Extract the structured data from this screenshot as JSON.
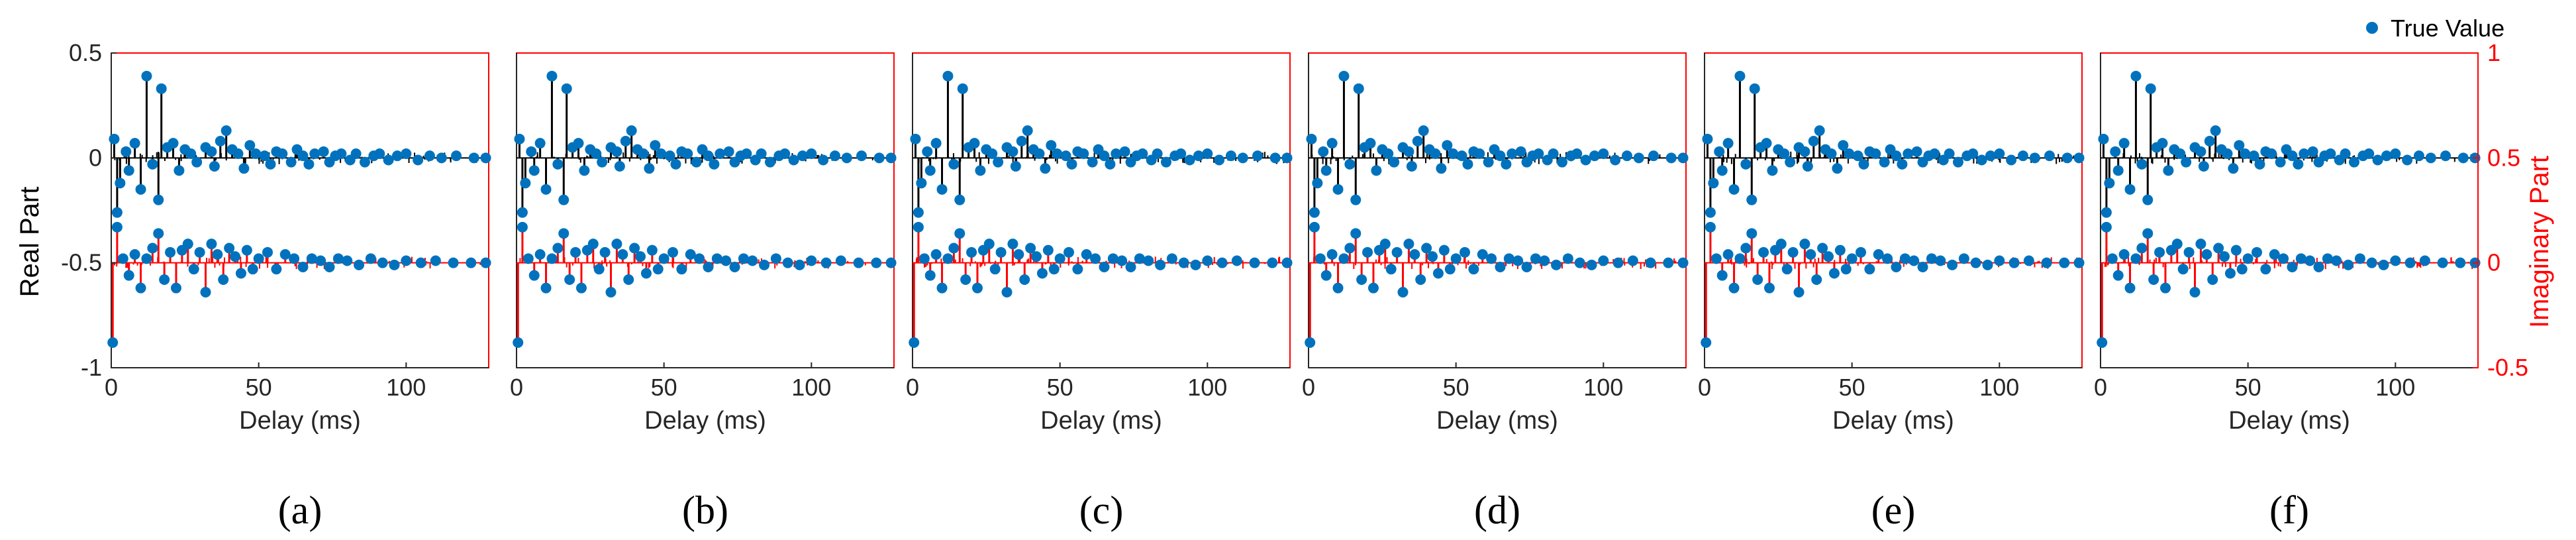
{
  "chart_data": {
    "type": "stem",
    "legend": {
      "label": "True Value",
      "placement": "top-right"
    },
    "xlabel": "Delay (ms)",
    "xlim": [
      0,
      128
    ],
    "xticks": [
      0,
      50,
      100
    ],
    "left_axis": {
      "label": "Real Part",
      "ylim": [
        -1,
        0.5
      ],
      "ticks": [
        "0.5",
        "0",
        "-0.5",
        "-1"
      ],
      "tick_values": [
        0.5,
        0,
        -0.5,
        -1
      ]
    },
    "right_axis": {
      "label": "Imaginary Part",
      "ylim": [
        -0.5,
        1
      ],
      "ticks": [
        "1",
        "0.5",
        "0",
        "-0.5"
      ],
      "tick_values": [
        1,
        0.5,
        0,
        -0.5
      ]
    },
    "colors": {
      "real_stem": "#000000",
      "imag_stem": "#ff0000",
      "true_value": "#0072bd",
      "frame": "#ff0000",
      "axis": "#262626"
    },
    "true_values": {
      "real": [
        {
          "x": 1,
          "y": 0.09
        },
        {
          "x": 2,
          "y": -0.26
        },
        {
          "x": 3,
          "y": -0.12
        },
        {
          "x": 5,
          "y": 0.03
        },
        {
          "x": 6,
          "y": -0.06
        },
        {
          "x": 8,
          "y": 0.07
        },
        {
          "x": 10,
          "y": -0.15
        },
        {
          "x": 12,
          "y": 0.39
        },
        {
          "x": 14,
          "y": -0.03
        },
        {
          "x": 16,
          "y": -0.2
        },
        {
          "x": 17,
          "y": 0.33
        },
        {
          "x": 19,
          "y": 0.05
        },
        {
          "x": 21,
          "y": 0.07
        },
        {
          "x": 23,
          "y": -0.06
        },
        {
          "x": 25,
          "y": 0.04
        },
        {
          "x": 27,
          "y": 0.02
        },
        {
          "x": 29,
          "y": -0.02
        },
        {
          "x": 32,
          "y": 0.05
        },
        {
          "x": 34,
          "y": 0.03
        },
        {
          "x": 35,
          "y": -0.04
        },
        {
          "x": 37,
          "y": 0.08
        },
        {
          "x": 39,
          "y": 0.13
        },
        {
          "x": 41,
          "y": 0.04
        },
        {
          "x": 43,
          "y": 0.02
        },
        {
          "x": 45,
          "y": -0.05
        },
        {
          "x": 47,
          "y": 0.06
        },
        {
          "x": 49,
          "y": 0.02
        },
        {
          "x": 52,
          "y": 0.01
        },
        {
          "x": 54,
          "y": -0.03
        },
        {
          "x": 56,
          "y": 0.03
        },
        {
          "x": 58,
          "y": 0.02
        },
        {
          "x": 61,
          "y": -0.02
        },
        {
          "x": 63,
          "y": 0.04
        },
        {
          "x": 65,
          "y": 0.01
        },
        {
          "x": 67,
          "y": -0.03
        },
        {
          "x": 69,
          "y": 0.02
        },
        {
          "x": 72,
          "y": 0.03
        },
        {
          "x": 74,
          "y": -0.02
        },
        {
          "x": 76,
          "y": 0.01
        },
        {
          "x": 78,
          "y": 0.02
        },
        {
          "x": 81,
          "y": -0.01
        },
        {
          "x": 83,
          "y": 0.02
        },
        {
          "x": 86,
          "y": -0.02
        },
        {
          "x": 89,
          "y": 0.01
        },
        {
          "x": 91,
          "y": 0.02
        },
        {
          "x": 94,
          "y": -0.01
        },
        {
          "x": 97,
          "y": 0.01
        },
        {
          "x": 100,
          "y": 0.02
        },
        {
          "x": 104,
          "y": -0.01
        },
        {
          "x": 108,
          "y": 0.01
        },
        {
          "x": 112,
          "y": 0.0
        },
        {
          "x": 117,
          "y": 0.01
        },
        {
          "x": 123,
          "y": 0.0
        },
        {
          "x": 127,
          "y": 0.0
        }
      ],
      "imag": [
        {
          "x": 0.5,
          "y": -0.38
        },
        {
          "x": 2,
          "y": 0.17
        },
        {
          "x": 4,
          "y": 0.02
        },
        {
          "x": 6,
          "y": -0.06
        },
        {
          "x": 8,
          "y": 0.04
        },
        {
          "x": 10,
          "y": -0.12
        },
        {
          "x": 12,
          "y": 0.02
        },
        {
          "x": 14,
          "y": 0.07
        },
        {
          "x": 16,
          "y": 0.14
        },
        {
          "x": 18,
          "y": -0.08
        },
        {
          "x": 20,
          "y": 0.05
        },
        {
          "x": 22,
          "y": -0.12
        },
        {
          "x": 24,
          "y": 0.06
        },
        {
          "x": 26,
          "y": 0.09
        },
        {
          "x": 28,
          "y": -0.03
        },
        {
          "x": 30,
          "y": 0.05
        },
        {
          "x": 32,
          "y": -0.14
        },
        {
          "x": 34,
          "y": 0.09
        },
        {
          "x": 36,
          "y": 0.04
        },
        {
          "x": 38,
          "y": -0.08
        },
        {
          "x": 40,
          "y": 0.07
        },
        {
          "x": 42,
          "y": 0.03
        },
        {
          "x": 44,
          "y": -0.05
        },
        {
          "x": 46,
          "y": 0.06
        },
        {
          "x": 48,
          "y": -0.03
        },
        {
          "x": 50,
          "y": 0.02
        },
        {
          "x": 53,
          "y": 0.05
        },
        {
          "x": 56,
          "y": -0.03
        },
        {
          "x": 59,
          "y": 0.04
        },
        {
          "x": 62,
          "y": 0.02
        },
        {
          "x": 65,
          "y": -0.02
        },
        {
          "x": 68,
          "y": 0.02
        },
        {
          "x": 71,
          "y": 0.01
        },
        {
          "x": 74,
          "y": -0.02
        },
        {
          "x": 77,
          "y": 0.02
        },
        {
          "x": 80,
          "y": 0.01
        },
        {
          "x": 84,
          "y": -0.01
        },
        {
          "x": 88,
          "y": 0.02
        },
        {
          "x": 92,
          "y": 0.0
        },
        {
          "x": 96,
          "y": -0.01
        },
        {
          "x": 100,
          "y": 0.01
        },
        {
          "x": 105,
          "y": 0.0
        },
        {
          "x": 110,
          "y": 0.01
        },
        {
          "x": 116,
          "y": 0.0
        },
        {
          "x": 122,
          "y": 0.0
        },
        {
          "x": 127,
          "y": 0.0
        }
      ]
    },
    "panels": [
      {
        "caption": "(a)"
      },
      {
        "caption": "(b)"
      },
      {
        "caption": "(c)"
      },
      {
        "caption": "(d)"
      },
      {
        "caption": "(e)"
      },
      {
        "caption": "(f)"
      }
    ]
  }
}
